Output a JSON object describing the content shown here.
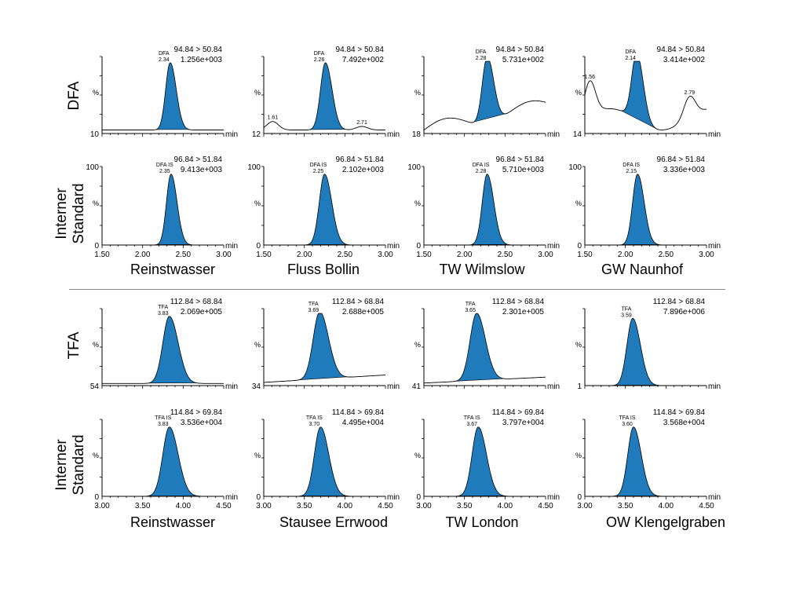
{
  "colors": {
    "peak_fill": "#1f7bbb",
    "trace": "#000000",
    "divider": "#8a8a8a"
  },
  "sections": [
    {
      "analyte_label": "DFA",
      "is_label_line1": "Interner",
      "is_label_line2": "Standard",
      "samples": [
        "Reinstwasser",
        "Fluss Bollin",
        "TW Wilmslow",
        "GW Naunhof"
      ]
    },
    {
      "analyte_label": "TFA",
      "is_label_line1": "Interner",
      "is_label_line2": "Standard",
      "samples": [
        "Reinstwasser",
        "Stausee Errwood",
        "TW London",
        "OW Klengelgraben"
      ]
    }
  ],
  "chart_data": [
    {
      "type": "line",
      "row": "DFA",
      "sample": "Reinstwasser",
      "transition": "94.84 > 50.84",
      "intensity": "1.256e+003",
      "peak_name": "DFA",
      "rt": "2.34",
      "y_min_label": "10",
      "y_axis_unit": "%",
      "x_unit": "min",
      "xlim": [
        1.5,
        3.0
      ],
      "peak_height": 0.95,
      "peak_width": 0.055,
      "baseline_level": 0.05
    },
    {
      "type": "line",
      "row": "DFA",
      "sample": "Fluss Bollin",
      "transition": "94.84 > 50.84",
      "intensity": "7.492e+002",
      "peak_name": "DFA",
      "rt": "2.26",
      "extra_peaks": [
        {
          "rt": "1.61",
          "x": 1.61,
          "h": 0.12
        },
        {
          "rt": "2.71",
          "x": 2.71,
          "h": 0.05
        }
      ],
      "y_min_label": "12",
      "y_axis_unit": "%",
      "x_unit": "min",
      "xlim": [
        1.5,
        3.0
      ],
      "peak_height": 0.95,
      "peak_width": 0.06,
      "baseline_level": 0.05
    },
    {
      "type": "line",
      "row": "DFA",
      "sample": "TW Wilmslow",
      "transition": "94.84 > 50.84",
      "intensity": "5.731e+002",
      "peak_name": "DFA",
      "rt": "2.28",
      "y_min_label": "18",
      "y_axis_unit": "%",
      "x_unit": "min",
      "xlim": [
        1.5,
        3.0
      ],
      "peak_height": 0.95,
      "peak_width": 0.06,
      "baseline_level": 0.2
    },
    {
      "type": "line",
      "row": "DFA",
      "sample": "GW Naunhof",
      "transition": "94.84 > 50.84",
      "intensity": "3.414e+002",
      "peak_name": "DFA",
      "rt": "2.14",
      "extra_peaks": [
        {
          "rt": "1.56",
          "x": 1.56,
          "h": 0.5
        },
        {
          "rt": "2.79",
          "x": 2.79,
          "h": 0.3
        }
      ],
      "y_min_label": "14",
      "y_axis_unit": "%",
      "x_unit": "min",
      "xlim": [
        1.5,
        3.0
      ],
      "peak_height": 0.95,
      "peak_width": 0.06,
      "baseline_level": 0.25
    },
    {
      "type": "line",
      "row": "DFA IS",
      "sample": "Reinstwasser",
      "transition": "96.84 > 51.84",
      "intensity": "9.413e+003",
      "peak_name": "DFA IS",
      "rt": "2.35",
      "y_top_label": "100",
      "y_min_label": "0",
      "y_axis_unit": "%",
      "x_unit": "min",
      "xlim": [
        1.5,
        3.0
      ],
      "xticks": [
        "1.50",
        "2.00",
        "2.50",
        "3.00"
      ],
      "peak_height": 0.98,
      "peak_width": 0.055,
      "baseline_level": 0.0
    },
    {
      "type": "line",
      "row": "DFA IS",
      "sample": "Fluss Bollin",
      "transition": "96.84 > 51.84",
      "intensity": "2.102e+003",
      "peak_name": "DFA IS",
      "rt": "2.25",
      "y_top_label": "100",
      "y_min_label": "0",
      "y_axis_unit": "%",
      "x_unit": "min",
      "xlim": [
        1.5,
        3.0
      ],
      "xticks": [
        "1.50",
        "2.00",
        "2.50",
        "3.00"
      ],
      "peak_height": 0.98,
      "peak_width": 0.065,
      "baseline_level": 0.0
    },
    {
      "type": "line",
      "row": "DFA IS",
      "sample": "TW Wilmslow",
      "transition": "96.84 > 51.84",
      "intensity": "5.710e+003",
      "peak_name": "DFA IS",
      "rt": "2.28",
      "y_top_label": "100",
      "y_min_label": "0",
      "y_axis_unit": "%",
      "x_unit": "min",
      "xlim": [
        1.5,
        3.0
      ],
      "xticks": [
        "1.50",
        "2.00",
        "2.50",
        "3.00"
      ],
      "peak_height": 0.98,
      "peak_width": 0.06,
      "baseline_level": 0.0
    },
    {
      "type": "line",
      "row": "DFA IS",
      "sample": "GW Naunhof",
      "transition": "96.84 > 51.84",
      "intensity": "3.336e+003",
      "peak_name": "DFA IS",
      "rt": "2.15",
      "y_top_label": "100",
      "y_min_label": "0",
      "y_axis_unit": "%",
      "x_unit": "min",
      "xlim": [
        1.5,
        3.0
      ],
      "xticks": [
        "1.50",
        "2.00",
        "2.50",
        "3.00"
      ],
      "peak_height": 0.98,
      "peak_width": 0.06,
      "baseline_level": 0.0
    },
    {
      "type": "line",
      "row": "TFA",
      "sample": "Reinstwasser",
      "transition": "112.84 > 68.84",
      "intensity": "2.069e+005",
      "peak_name": "TFA",
      "rt": "3.83",
      "y_min_label": "54",
      "y_axis_unit": "%",
      "x_unit": "min",
      "xlim": [
        3.0,
        4.5
      ],
      "peak_height": 0.95,
      "peak_width": 0.08,
      "baseline_level": 0.02
    },
    {
      "type": "line",
      "row": "TFA",
      "sample": "Stausee Errwood",
      "transition": "112.84 > 68.84",
      "intensity": "2.688e+005",
      "peak_name": "TFA",
      "rt": "3.69",
      "y_min_label": "34",
      "y_axis_unit": "%",
      "x_unit": "min",
      "xlim": [
        3.0,
        4.5
      ],
      "peak_height": 0.95,
      "peak_width": 0.08,
      "baseline_level": 0.15
    },
    {
      "type": "line",
      "row": "TFA",
      "sample": "TW London",
      "transition": "112.84 > 68.84",
      "intensity": "2.301e+005",
      "peak_name": "TFA",
      "rt": "3.65",
      "y_min_label": "41",
      "y_axis_unit": "%",
      "x_unit": "min",
      "xlim": [
        3.0,
        4.5
      ],
      "peak_height": 0.95,
      "peak_width": 0.08,
      "baseline_level": 0.12
    },
    {
      "type": "line",
      "row": "TFA",
      "sample": "OW Klengelgraben",
      "transition": "112.84 > 68.84",
      "intensity": "7.896e+006",
      "peak_name": "TFA",
      "rt": "3.59",
      "y_min_label": "1",
      "y_axis_unit": "%",
      "x_unit": "min",
      "xlim": [
        3.0,
        4.5
      ],
      "peak_height": 0.95,
      "peak_width": 0.07,
      "baseline_level": 0.0
    },
    {
      "type": "line",
      "row": "TFA IS",
      "sample": "Reinstwasser",
      "transition": "114.84 > 69.84",
      "intensity": "3.536e+004",
      "peak_name": "TFA IS",
      "rt": "3.83",
      "y_min_label": "0",
      "y_axis_unit": "%",
      "x_unit": "min",
      "xlim": [
        3.0,
        4.5
      ],
      "xticks": [
        "3.00",
        "3.50",
        "4.00",
        "4.50"
      ],
      "peak_height": 0.98,
      "peak_width": 0.08,
      "baseline_level": 0.0
    },
    {
      "type": "line",
      "row": "TFA IS",
      "sample": "Stausee Errwood",
      "transition": "114.84 > 69.84",
      "intensity": "4.495e+004",
      "peak_name": "TFA IS",
      "rt": "3.70",
      "y_min_label": "0",
      "y_axis_unit": "%",
      "x_unit": "min",
      "xlim": [
        3.0,
        4.5
      ],
      "xticks": [
        "3.00",
        "3.50",
        "4.00",
        "4.50"
      ],
      "peak_height": 0.98,
      "peak_width": 0.075,
      "baseline_level": 0.0
    },
    {
      "type": "line",
      "row": "TFA IS",
      "sample": "TW London",
      "transition": "114.84 > 69.84",
      "intensity": "3.797e+004",
      "peak_name": "TFA IS",
      "rt": "3.67",
      "y_min_label": "0",
      "y_axis_unit": "%",
      "x_unit": "min",
      "xlim": [
        3.0,
        4.5
      ],
      "xticks": [
        "3.00",
        "3.50",
        "4.00",
        "4.50"
      ],
      "peak_height": 0.98,
      "peak_width": 0.075,
      "baseline_level": 0.0
    },
    {
      "type": "line",
      "row": "TFA IS",
      "sample": "OW Klengelgraben",
      "transition": "114.84 > 69.84",
      "intensity": "3.568e+004",
      "peak_name": "TFA IS",
      "rt": "3.60",
      "y_min_label": "0",
      "y_axis_unit": "%",
      "x_unit": "min",
      "xlim": [
        3.0,
        4.5
      ],
      "xticks": [
        "3.00",
        "3.50",
        "4.00",
        "4.50"
      ],
      "peak_height": 0.98,
      "peak_width": 0.07,
      "baseline_level": 0.0
    }
  ]
}
